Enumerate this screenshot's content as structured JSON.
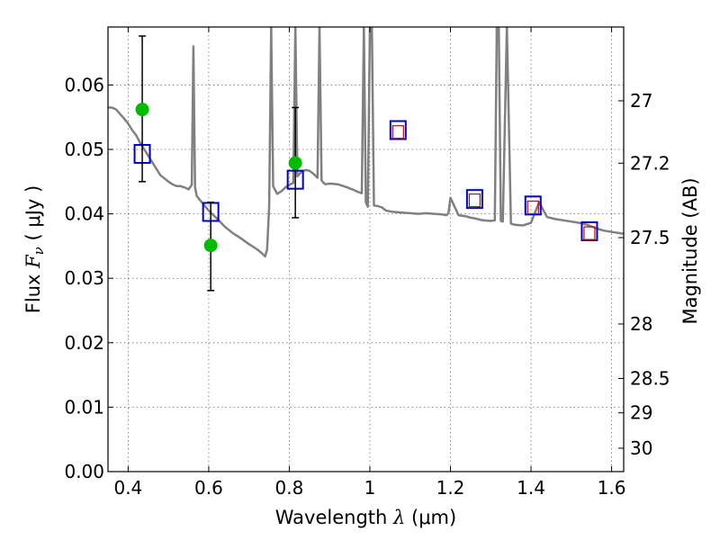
{
  "chart_data": {
    "type": "scatter",
    "xlabel": "Wavelength",
    "xlabel_symbol": "λ",
    "xlabel_unit": "(μm)",
    "ylabel": "Flux",
    "ylabel_symbol": "F",
    "ylabel_sub": "ν",
    "ylabel_unit": "( μJy )",
    "y2label": "Magnitude (AB)",
    "xlim": [
      0.35,
      1.63
    ],
    "ylim": [
      0.0,
      0.069
    ],
    "grid": true,
    "x_ticks": [
      {
        "value": 0.4,
        "label": "0.4"
      },
      {
        "value": 0.6,
        "label": "0.6"
      },
      {
        "value": 0.8,
        "label": "0.8"
      },
      {
        "value": 1.0,
        "label": "1"
      },
      {
        "value": 1.2,
        "label": "1.2"
      },
      {
        "value": 1.4,
        "label": "1.4"
      },
      {
        "value": 1.6,
        "label": "1.6"
      }
    ],
    "y_ticks": [
      {
        "value": 0.0,
        "label": "0.00"
      },
      {
        "value": 0.01,
        "label": "0.01"
      },
      {
        "value": 0.02,
        "label": "0.02"
      },
      {
        "value": 0.03,
        "label": "0.03"
      },
      {
        "value": 0.04,
        "label": "0.04"
      },
      {
        "value": 0.05,
        "label": "0.05"
      },
      {
        "value": 0.06,
        "label": "0.06"
      }
    ],
    "y2_ticks": [
      {
        "mag": 27.0,
        "label": "27"
      },
      {
        "mag": 27.2,
        "label": "27.2"
      },
      {
        "mag": 27.5,
        "label": "27.5"
      },
      {
        "mag": 28.0,
        "label": "28"
      },
      {
        "mag": 28.5,
        "label": "28.5"
      },
      {
        "mag": 29.0,
        "label": "29"
      },
      {
        "mag": 30.0,
        "label": "30"
      }
    ],
    "series": [
      {
        "kind": "line",
        "color": "#808080",
        "x": [
          0.35,
          0.36,
          0.37,
          0.38,
          0.39,
          0.4,
          0.41,
          0.42,
          0.43,
          0.44,
          0.45,
          0.46,
          0.47,
          0.48,
          0.49,
          0.5,
          0.51,
          0.52,
          0.53,
          0.54,
          0.55,
          0.558,
          0.562,
          0.566,
          0.57,
          0.58,
          0.6,
          0.62,
          0.64,
          0.66,
          0.68,
          0.7,
          0.72,
          0.73,
          0.74,
          0.745,
          0.75,
          0.755,
          0.76,
          0.77,
          0.78,
          0.79,
          0.8,
          0.81,
          0.815,
          0.82,
          0.83,
          0.84,
          0.85,
          0.86,
          0.87,
          0.875,
          0.88,
          0.885,
          0.89,
          0.9,
          0.92,
          0.94,
          0.96,
          0.975,
          0.98,
          0.985,
          0.99,
          0.995,
          1.0,
          1.005,
          1.01,
          1.02,
          1.03,
          1.04,
          1.05,
          1.06,
          1.08,
          1.1,
          1.12,
          1.14,
          1.16,
          1.18,
          1.19,
          1.195,
          1.2,
          1.22,
          1.24,
          1.25,
          1.26,
          1.28,
          1.3,
          1.31,
          1.315,
          1.32,
          1.325,
          1.33,
          1.34,
          1.35,
          1.36,
          1.38,
          1.4,
          1.42,
          1.44,
          1.46,
          1.48,
          1.5,
          1.52,
          1.54,
          1.56,
          1.58,
          1.6,
          1.63
        ],
        "y": [
          0.0565,
          0.0565,
          0.0562,
          0.0555,
          0.0548,
          0.054,
          0.053,
          0.0522,
          0.051,
          0.05,
          0.049,
          0.048,
          0.047,
          0.046,
          0.0455,
          0.045,
          0.0446,
          0.0443,
          0.0443,
          0.0441,
          0.0438,
          0.0445,
          0.066,
          0.0442,
          0.0428,
          0.042,
          0.0405,
          0.0393,
          0.038,
          0.037,
          0.0362,
          0.0353,
          0.0345,
          0.034,
          0.0334,
          0.0345,
          0.0412,
          0.069,
          0.0443,
          0.0431,
          0.0435,
          0.0441,
          0.0445,
          0.0448,
          0.069,
          0.0458,
          0.0465,
          0.0468,
          0.0467,
          0.0462,
          0.0456,
          0.069,
          0.0452,
          0.0448,
          0.0446,
          0.0447,
          0.0446,
          0.0442,
          0.0437,
          0.0433,
          0.0432,
          0.069,
          0.0418,
          0.0411,
          0.069,
          0.069,
          0.0413,
          0.0412,
          0.041,
          0.0405,
          0.0404,
          0.0403,
          0.0402,
          0.0401,
          0.04,
          0.0401,
          0.04,
          0.0399,
          0.0398,
          0.0401,
          0.0425,
          0.0398,
          0.0396,
          0.0394,
          0.0393,
          0.039,
          0.0389,
          0.039,
          0.069,
          0.069,
          0.0389,
          0.0388,
          0.069,
          0.0385,
          0.0383,
          0.0382,
          0.0386,
          0.0418,
          0.0395,
          0.0392,
          0.039,
          0.0388,
          0.0386,
          0.0383,
          0.0378,
          0.0374,
          0.0372,
          0.0369
        ]
      },
      {
        "kind": "observed",
        "color": "#00bb00",
        "x": [
          0.435,
          0.605,
          0.815
        ],
        "y": [
          0.0562,
          0.0351,
          0.0479
        ],
        "yerr_low": [
          0.045,
          0.0281,
          0.0394
        ],
        "yerr_high": [
          0.0676,
          0.0418,
          0.0565
        ]
      },
      {
        "kind": "model_photometry",
        "color": "#0000cc",
        "x": [
          0.435,
          0.605,
          0.815,
          1.07,
          1.26,
          1.405,
          1.545
        ],
        "y": [
          0.0493,
          0.0403,
          0.0453,
          0.053,
          0.0423,
          0.0413,
          0.0373
        ]
      },
      {
        "kind": "upper_limit",
        "color": "#cc0000",
        "x": [
          1.07,
          1.26,
          1.405,
          1.545
        ],
        "y": [
          0.0527,
          0.0421,
          0.041,
          0.037
        ]
      }
    ]
  }
}
